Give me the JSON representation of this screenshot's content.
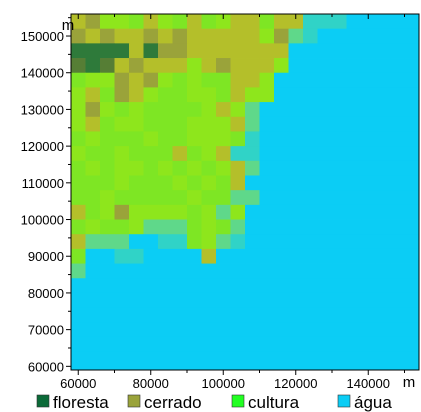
{
  "chart_data": {
    "type": "heatmap",
    "title": "",
    "x_unit": "m",
    "y_unit": "m",
    "xlim": [
      58000,
      154000
    ],
    "ylim": [
      59000,
      156000
    ],
    "x_ticks": [
      60000,
      80000,
      100000,
      120000,
      140000
    ],
    "y_ticks": [
      60000,
      70000,
      80000,
      90000,
      100000,
      110000,
      120000,
      130000,
      140000,
      150000
    ],
    "cell_size": [
      4000,
      4000
    ],
    "grid_x0": 58000,
    "grid_y_top": 156000,
    "grid_cols": 24,
    "grid_rows": 25,
    "classes": [
      {
        "code": "F",
        "name": "floresta",
        "color": "#0b6a38"
      },
      {
        "code": "C",
        "name": "cerrado",
        "color": "#9aa33a"
      },
      {
        "code": "G",
        "name": "cultura",
        "color": "#22ff22"
      },
      {
        "code": "A",
        "name": "água",
        "color": "#0bcdf5"
      }
    ],
    "shade_colors": {
      "F": "#2e7a3a",
      "f": "#567e35",
      "C": "#9aa33a",
      "c": "#b4bf2a",
      "y": "#c8e41f",
      "Y": "#a9e01e",
      "g": "#8ee61c",
      "G": "#7ee624",
      "t": "#5fd88a",
      "u": "#30d3c7",
      "A": "#0bcdf5"
    },
    "grid": [
      "cCggGcgGcGgccGccuuuAAAAA",
      "CcCccCcCcccccgCtuAAAAAAA",
      "FFFFcFCCcccccccAAAAAAAAA",
      "fFfcCcccgcCcccgAAAAAAAAA",
      "GggCcCgGgGGccgAAAAAAAAAA",
      "gcGCcgGGggGcggAAAAAAAAAA",
      "gCgGgGGGGgcgtAAAAAAAAAAA",
      "gcGggGGGgggctAAAAAAAAAAA",
      "GgGGGgGGgggGuAAAAAAAAAAA",
      "gGGgGGGcGgcuuAAAAAAAAAAA",
      "GgGggGgGgGgctAAAAAAAAAAA",
      "GGGgGGGgGgGcAAAAAAAAAAAA",
      "GGgGGGGGgGGttAAAAAAAAAAA",
      "cGgCggggGgtgAAAAAAAAAAAA",
      "GgGGgtttGgGtAAAAAAAAAAAA",
      "ctttAAuuGgtuAAAAAAAAAAAA",
      "GAAuuAAAAcAAAAAAAAAAAAAA",
      "tAAAAAAAAAAAAAAAAAAAAAAA",
      "AAAAAAAAAAAAAAAAAAAAAAAA",
      "AAAAAAAAAAAAAAAAAAAAAAAA",
      "AAAAAAAAAAAAAAAAAAAAAAAA",
      "AAAAAAAAAAAAAAAAAAAAAAAA",
      "AAAAAAAAAAAAAAAAAAAAAAAA",
      "AAAAAAAAAAAAAAAAAAAAAAAA",
      "AAAAAAAAAAAAAAAAAAAAAAAA"
    ]
  }
}
